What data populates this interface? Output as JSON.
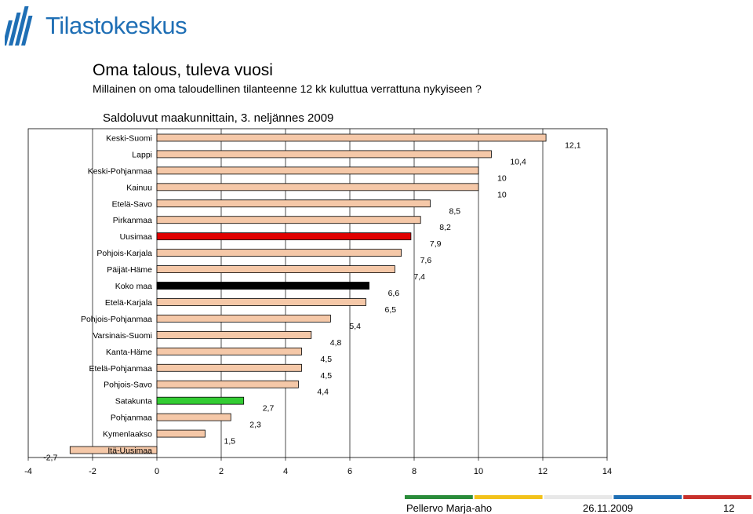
{
  "header": {
    "logo_text": "Tilastokeskus",
    "title": "Oma talous, tuleva vuosi",
    "subtitle": "Millainen on oma taloudellinen tilanteenne 12 kk kuluttua verrattuna nykyiseen ?"
  },
  "chart_data": {
    "type": "bar",
    "orientation": "horizontal",
    "title": "Saldoluvut maakunnittain, 3. neljännes 2009",
    "xlim": [
      -4,
      14
    ],
    "xticks": [
      "-4",
      "-2",
      "0",
      "2",
      "4",
      "6",
      "8",
      "10",
      "12",
      "14"
    ],
    "grid": true,
    "legend": "none",
    "colors": {
      "default": "#f5c8a8",
      "highlight_red": "#e00000",
      "highlight_black": "#000000",
      "highlight_green": "#33cc33",
      "stroke": "#000000"
    },
    "categories": [
      "Keski-Suomi",
      "Lappi",
      "Keski-Pohjanmaa",
      "Kainuu",
      "Etelä-Savo",
      "Pirkanmaa",
      "Uusimaa",
      "Pohjois-Karjala",
      "Päijät-Häme",
      "Koko maa",
      "Etelä-Karjala",
      "Pohjois-Pohjanmaa",
      "Varsinais-Suomi",
      "Kanta-Häme",
      "Etelä-Pohjanmaa",
      "Pohjois-Savo",
      "Satakunta",
      "Pohjanmaa",
      "Kymenlaakso",
      "Itä-Uusimaa"
    ],
    "values": [
      12.1,
      10.4,
      10,
      10,
      8.5,
      8.2,
      7.9,
      7.6,
      7.4,
      6.6,
      6.5,
      5.4,
      4.8,
      4.5,
      4.5,
      4.4,
      2.7,
      2.3,
      1.5,
      -2.7
    ],
    "data_labels": [
      "12,1",
      "10,4",
      "10",
      "10",
      "8,5",
      "8,2",
      "7,9",
      "7,6",
      "7,4",
      "6,6",
      "6,5",
      "5,4",
      "4,8",
      "4,5",
      "4,5",
      "4,4",
      "2,7",
      "2,3",
      "1,5",
      "-2,7"
    ],
    "bar_colors": [
      "default",
      "default",
      "default",
      "default",
      "default",
      "default",
      "highlight_red",
      "default",
      "default",
      "highlight_black",
      "default",
      "default",
      "default",
      "default",
      "default",
      "default",
      "highlight_green",
      "default",
      "default",
      "default"
    ]
  },
  "footer": {
    "author": "Pellervo Marja-aho",
    "date": "26.11.2009",
    "page": "12",
    "line_colors": [
      "#2a8c3a",
      "#f2c21b",
      "#e8e8e8",
      "#1f6fb5",
      "#c8312b"
    ]
  }
}
